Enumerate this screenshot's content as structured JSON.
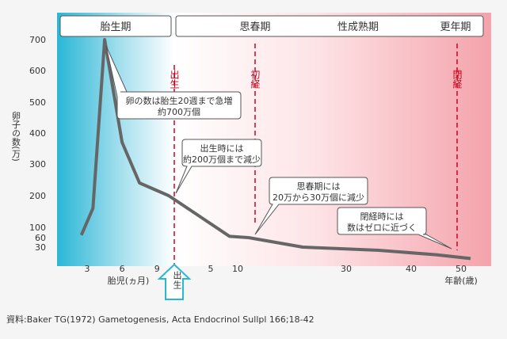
{
  "chart_data": {
    "type": "line",
    "ylabel": "卵子の数(万)",
    "y_ticks": [
      30,
      60,
      100,
      200,
      300,
      400,
      500,
      600,
      700
    ],
    "x_ticks_fetal": [
      "3",
      "6",
      "9"
    ],
    "x_ticks_age": [
      "5",
      "10",
      "30",
      "40",
      "50"
    ],
    "xlabel_fetal": "胎児(ヵ月)",
    "xlabel_age": "年齢(歳)",
    "birth_label": "出生",
    "series": [
      {
        "segment": "fetal_months",
        "points": [
          {
            "x": 2.5,
            "y": 70
          },
          {
            "x": 3.5,
            "y": 160
          },
          {
            "x": 4.5,
            "y": 700
          },
          {
            "x": 6.0,
            "y": 370
          },
          {
            "x": 7.5,
            "y": 240
          },
          {
            "x": 10.0,
            "y": 200
          }
        ]
      },
      {
        "segment": "age_years",
        "points": [
          {
            "x": 8.5,
            "y": 65
          },
          {
            "x": 12.0,
            "y": 60
          },
          {
            "x": 22.0,
            "y": 30
          },
          {
            "x": 35.0,
            "y": 25
          },
          {
            "x": 45.0,
            "y": 18
          },
          {
            "x": 52.0,
            "y": 12
          }
        ]
      }
    ],
    "phases": [
      {
        "label": "胎生期"
      },
      {
        "label": "思春期"
      },
      {
        "label": "性成熟期"
      },
      {
        "label": "更年期"
      }
    ],
    "events": [
      {
        "label": "出生"
      },
      {
        "label": "初経"
      },
      {
        "label": "閉経"
      }
    ],
    "callouts": [
      {
        "lines": [
          "卵の数は胎生20週まで急増",
          "約700万個"
        ]
      },
      {
        "lines": [
          "出生時には",
          "約200万個まで減少"
        ]
      },
      {
        "lines": [
          "思春期には",
          "20万から30万個に減少"
        ]
      },
      {
        "lines": [
          "閉経時には",
          "数はゼロに近づく"
        ]
      }
    ],
    "colors": {
      "line": "#666666",
      "event": "#d0021b",
      "fetal_bg": "#29b7d6",
      "postnatal_bg": "#f4a3ab"
    }
  },
  "source": "資料:Baker TG(1972) Gametogenesis, Acta Endocrinol Sullpl 166;18-42"
}
